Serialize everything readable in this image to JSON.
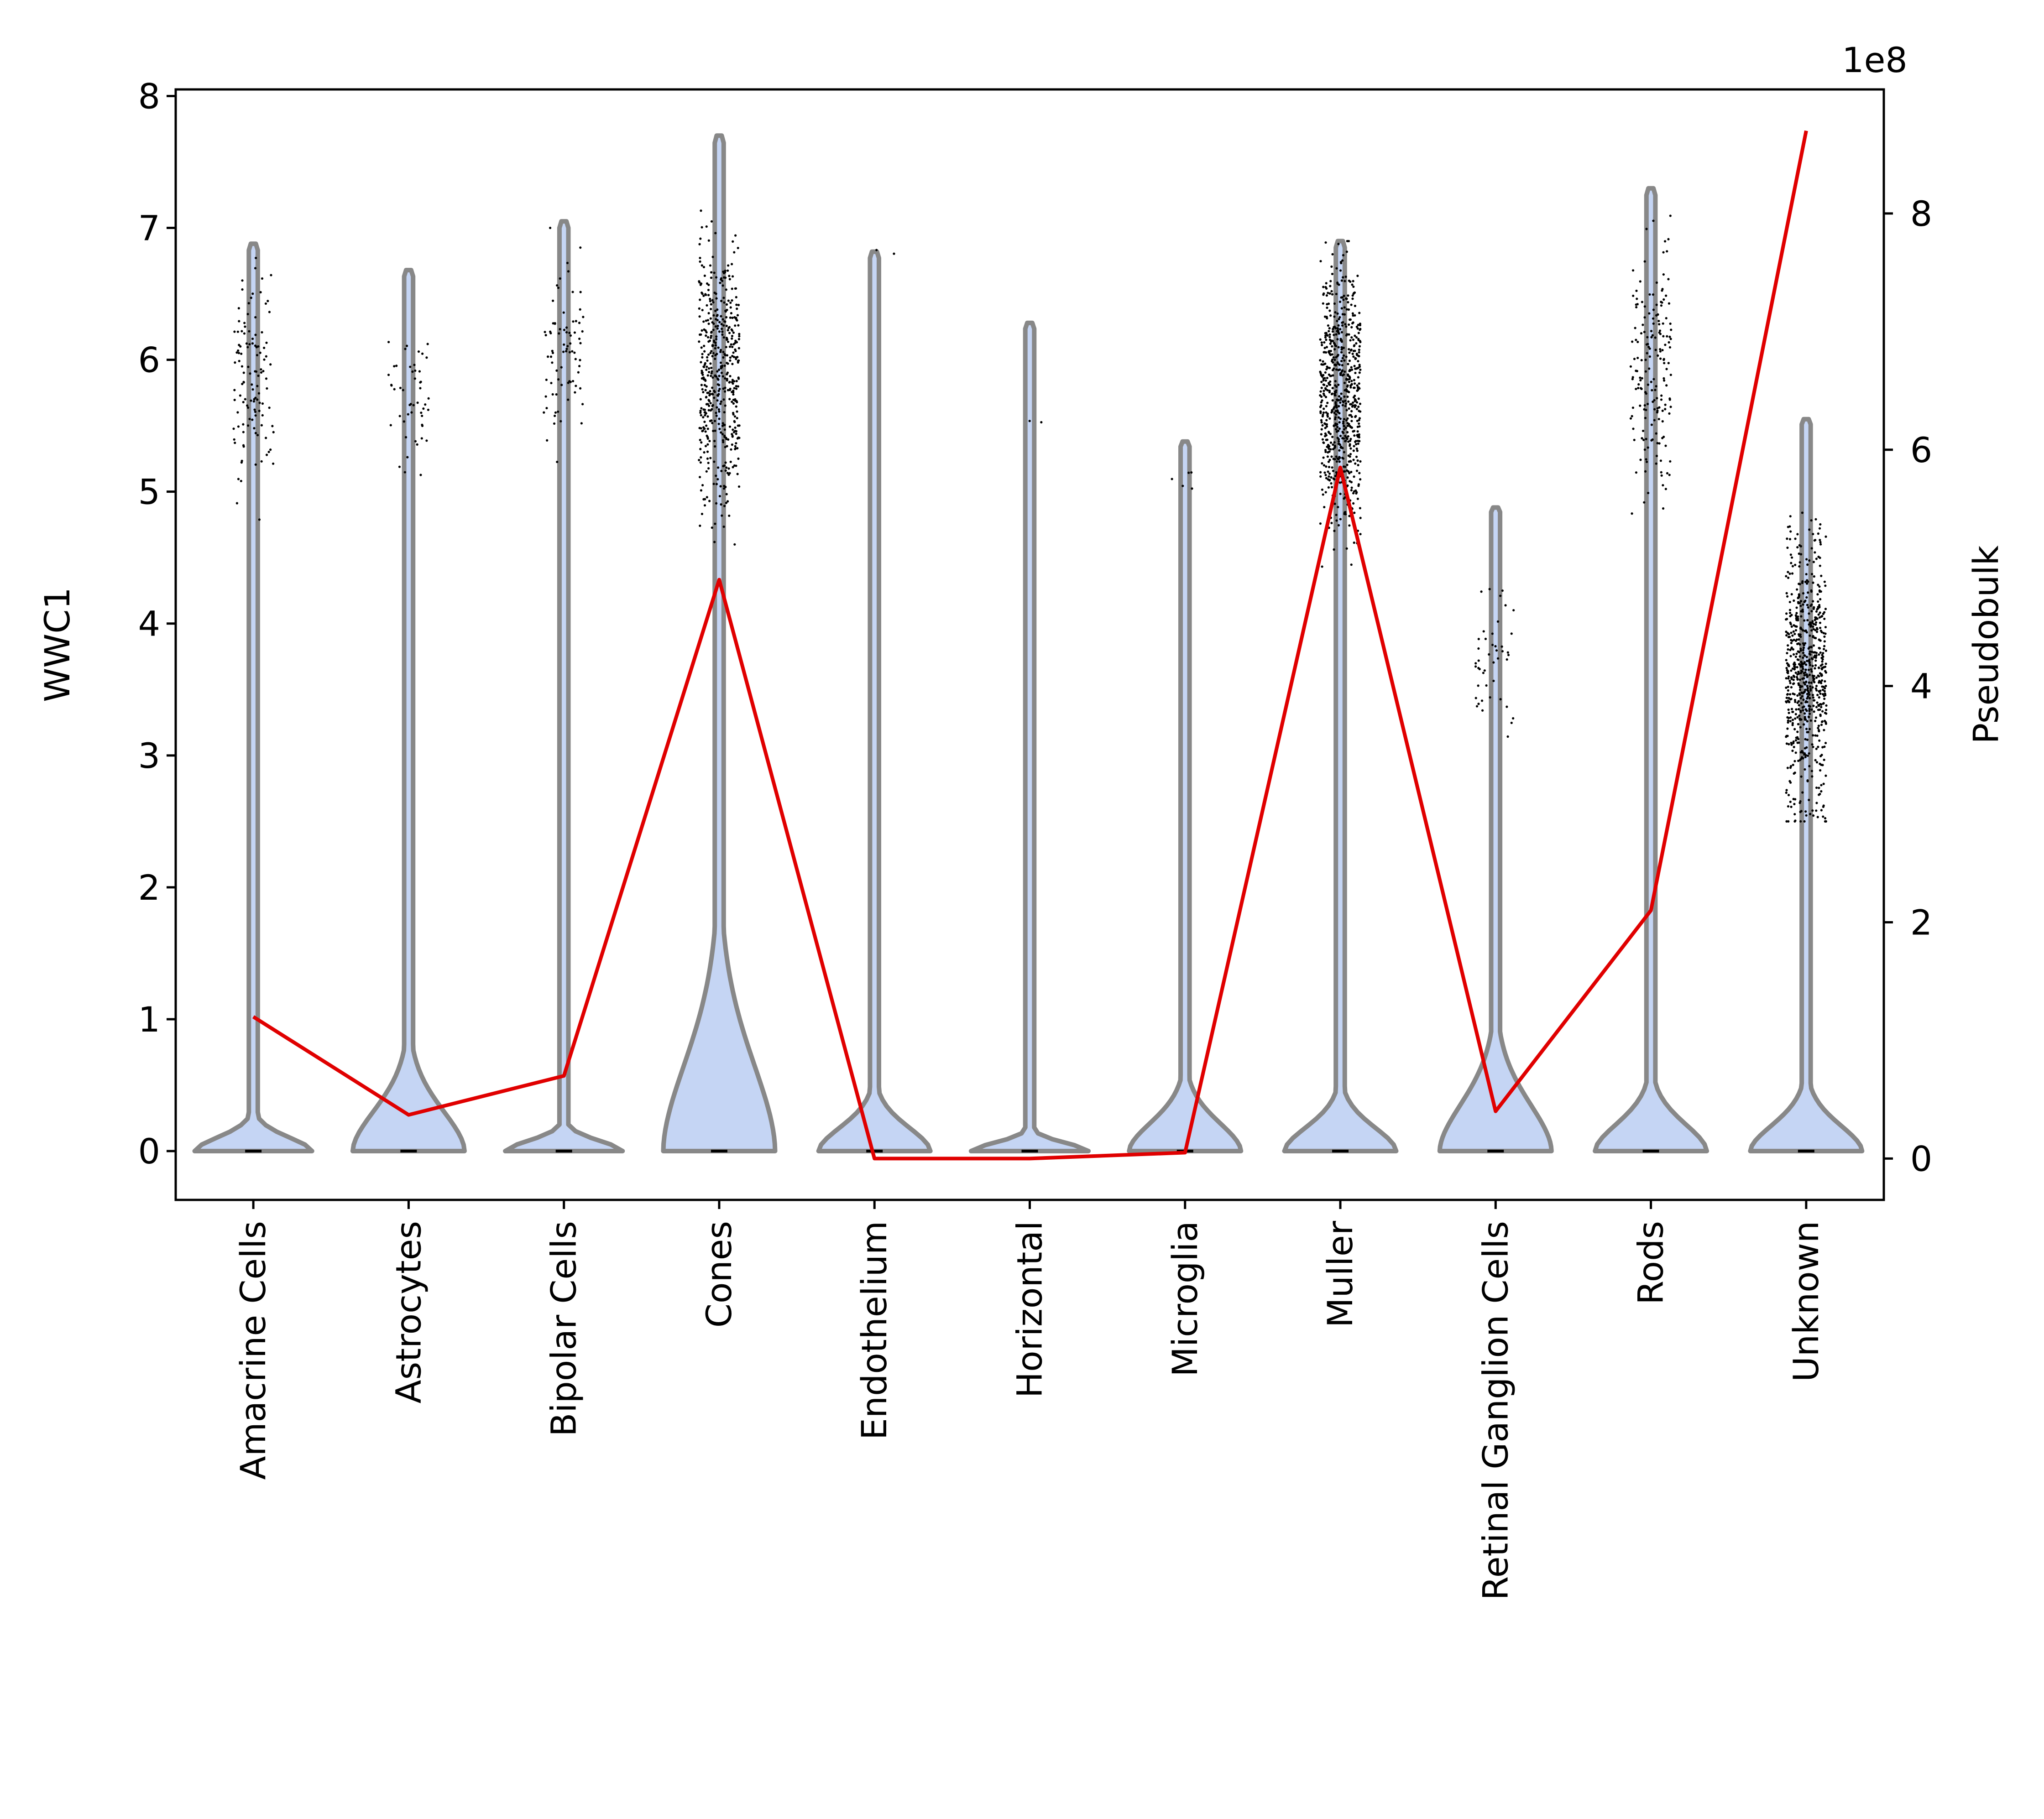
{
  "chart_data": {
    "type": "violin",
    "categories": [
      "Amacrine Cells",
      "Astrocytes",
      "Bipolar Cells",
      "Cones",
      "Endothelium",
      "Horizontal",
      "Microglia",
      "Muller",
      "Retinal Ganglion Cells",
      "Rods",
      "Unknown"
    ],
    "ylabel": "WWC1",
    "y2label": "Pseudobulk",
    "y2_offset_text": "1e8",
    "ylim": [
      -0.37,
      8.05
    ],
    "y2lim": [
      -0.35,
      9.05
    ],
    "yticks": [
      "0",
      "1",
      "2",
      "3",
      "4",
      "5",
      "6",
      "7",
      "8"
    ],
    "y2ticks": [
      "0",
      "2",
      "4",
      "6",
      "8"
    ],
    "violins": [
      {
        "name": "Amacrine Cells",
        "max": 6.88,
        "bulb_height": 0.2,
        "bulb_halfwidth": 0.42,
        "cluster_low": 4.3,
        "cluster_high": 6.85,
        "cluster_mid": 5.8,
        "n_points": 120
      },
      {
        "name": "Astrocytes",
        "max": 6.68,
        "bulb_height": 0.6,
        "bulb_halfwidth": 0.4,
        "cluster_low": 4.95,
        "cluster_high": 6.4,
        "cluster_mid": 5.75,
        "n_points": 50
      },
      {
        "name": "Bipolar Cells",
        "max": 7.05,
        "bulb_height": 0.15,
        "bulb_halfwidth": 0.42,
        "cluster_low": 4.95,
        "cluster_high": 7.0,
        "cluster_mid": 6.1,
        "n_points": 80
      },
      {
        "name": "Cones",
        "max": 7.7,
        "bulb_height": 1.3,
        "bulb_halfwidth": 0.4,
        "cluster_low": 4.6,
        "cluster_high": 7.6,
        "cluster_mid": 5.9,
        "n_points": 500
      },
      {
        "name": "Endothelium",
        "max": 6.82,
        "bulb_height": 0.35,
        "bulb_halfwidth": 0.4,
        "cluster_low": 6.8,
        "cluster_high": 6.85,
        "cluster_mid": 6.82,
        "n_points": 2
      },
      {
        "name": "Horizontal",
        "max": 6.28,
        "bulb_height": 0.12,
        "bulb_halfwidth": 0.42,
        "cluster_low": 5.4,
        "cluster_high": 5.85,
        "cluster_mid": 5.6,
        "n_points": 2
      },
      {
        "name": "Microglia",
        "max": 5.38,
        "bulb_height": 0.42,
        "bulb_halfwidth": 0.4,
        "cluster_low": 4.8,
        "cluster_high": 5.35,
        "cluster_mid": 5.15,
        "n_points": 5
      },
      {
        "name": "Muller",
        "max": 6.9,
        "bulb_height": 0.35,
        "bulb_halfwidth": 0.4,
        "cluster_low": 4.0,
        "cluster_high": 6.9,
        "cluster_mid": 5.7,
        "n_points": 700
      },
      {
        "name": "Retinal Ganglion Cells",
        "max": 4.88,
        "bulb_height": 0.7,
        "bulb_halfwidth": 0.4,
        "cluster_low": 3.1,
        "cluster_high": 4.85,
        "cluster_mid": 3.7,
        "n_points": 45
      },
      {
        "name": "Rods",
        "max": 7.3,
        "bulb_height": 0.4,
        "bulb_halfwidth": 0.4,
        "cluster_low": 4.3,
        "cluster_high": 7.3,
        "cluster_mid": 5.9,
        "n_points": 180
      },
      {
        "name": "Unknown",
        "max": 5.55,
        "bulb_height": 0.38,
        "bulb_halfwidth": 0.4,
        "cluster_low": 2.5,
        "cluster_high": 5.5,
        "cluster_mid": 3.6,
        "n_points": 700
      }
    ],
    "series": [
      {
        "name": "Pseudobulk",
        "axis": "right",
        "color": "#e00000",
        "values": [
          1.2,
          0.37,
          0.7,
          4.9,
          0.0,
          0.0,
          0.05,
          5.85,
          0.4,
          2.1,
          8.7
        ]
      }
    ],
    "colors": {
      "violin_fill": "#c5d5f4",
      "violin_edge": "#888888",
      "line": "#e00000",
      "points": "#000000"
    }
  }
}
